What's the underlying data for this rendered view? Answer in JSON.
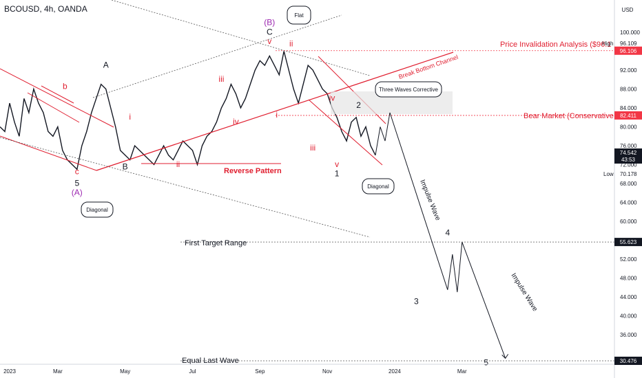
{
  "symbol": "BCOUSD, 4h, OANDA",
  "currency": "USD",
  "chart_data": {
    "type": "line",
    "ylim": [
      28,
      108
    ],
    "y_ticks": [
      {
        "v": 100,
        "label": "100.000"
      },
      {
        "v": 92,
        "label": "92.000"
      },
      {
        "v": 88,
        "label": "88.000"
      },
      {
        "v": 84,
        "label": "84.000"
      },
      {
        "v": 80,
        "label": "80.000"
      },
      {
        "v": 76,
        "label": "76.000"
      },
      {
        "v": 72,
        "label": "72.000"
      },
      {
        "v": 68,
        "label": "68.000"
      },
      {
        "v": 64,
        "label": "64.000"
      },
      {
        "v": 60,
        "label": "60.000"
      },
      {
        "v": 52,
        "label": "52.000"
      },
      {
        "v": 48,
        "label": "48.000"
      },
      {
        "v": 44,
        "label": "44.000"
      },
      {
        "v": 40,
        "label": "40.000"
      },
      {
        "v": 36,
        "label": "36.000"
      }
    ],
    "x_ticks": [
      {
        "x": 0,
        "label": "2023"
      },
      {
        "x": 12,
        "label": "Mar"
      },
      {
        "x": 26,
        "label": "May"
      },
      {
        "x": 40,
        "label": "Jul"
      },
      {
        "x": 54,
        "label": "Sep"
      },
      {
        "x": 68,
        "label": "Nov"
      },
      {
        "x": 82,
        "label": "2024"
      },
      {
        "x": 96,
        "label": "Mar"
      }
    ],
    "high_label": "High",
    "high_value": "96.109",
    "low_label": "Low",
    "low_value": "70.178",
    "price_badges": [
      {
        "v": 96.106,
        "label": "96.106",
        "color": "#f23645"
      },
      {
        "v": 82.411,
        "label": "82.411",
        "color": "#f23645"
      },
      {
        "v": 74.542,
        "label": "74.542",
        "sub": "43:53",
        "color": "#131722"
      },
      {
        "v": 55.623,
        "label": "55.623",
        "color": "#131722"
      },
      {
        "v": 30.476,
        "label": "30.476",
        "color": "#131722"
      }
    ],
    "price_path": [
      [
        0,
        80
      ],
      [
        1,
        79
      ],
      [
        2,
        85
      ],
      [
        3,
        81
      ],
      [
        4,
        78
      ],
      [
        5,
        86
      ],
      [
        6,
        83
      ],
      [
        7,
        88
      ],
      [
        8,
        85
      ],
      [
        9,
        83
      ],
      [
        10,
        79
      ],
      [
        11,
        78
      ],
      [
        12,
        80
      ],
      [
        13,
        75
      ],
      [
        14,
        73
      ],
      [
        15,
        72
      ],
      [
        16,
        71
      ],
      [
        17,
        76
      ],
      [
        18,
        79
      ],
      [
        19,
        83
      ],
      [
        20,
        86
      ],
      [
        21,
        89
      ],
      [
        22,
        88
      ],
      [
        23,
        84
      ],
      [
        24,
        80
      ],
      [
        25,
        75
      ],
      [
        26,
        74
      ],
      [
        27,
        73
      ],
      [
        28,
        76
      ],
      [
        29,
        75
      ],
      [
        30,
        74
      ],
      [
        31,
        73
      ],
      [
        32,
        72
      ],
      [
        33,
        74
      ],
      [
        34,
        76
      ],
      [
        35,
        74
      ],
      [
        36,
        73
      ],
      [
        37,
        75
      ],
      [
        38,
        77
      ],
      [
        39,
        76
      ],
      [
        40,
        75
      ],
      [
        41,
        72
      ],
      [
        42,
        76
      ],
      [
        43,
        78
      ],
      [
        44,
        79
      ],
      [
        45,
        81
      ],
      [
        46,
        84
      ],
      [
        47,
        86
      ],
      [
        48,
        89
      ],
      [
        49,
        87
      ],
      [
        50,
        84
      ],
      [
        51,
        86
      ],
      [
        52,
        89
      ],
      [
        53,
        92
      ],
      [
        54,
        94
      ],
      [
        55,
        93
      ],
      [
        56,
        95
      ],
      [
        57,
        93
      ],
      [
        58,
        91
      ],
      [
        59,
        96
      ],
      [
        60,
        92
      ],
      [
        61,
        88
      ],
      [
        62,
        85
      ],
      [
        63,
        89
      ],
      [
        64,
        93
      ],
      [
        65,
        92
      ],
      [
        66,
        90
      ],
      [
        67,
        88
      ],
      [
        68,
        87
      ],
      [
        69,
        84
      ],
      [
        70,
        82
      ],
      [
        71,
        79
      ],
      [
        72,
        77
      ],
      [
        73,
        81
      ],
      [
        74,
        82
      ],
      [
        75,
        78
      ],
      [
        76,
        80
      ],
      [
        77,
        76
      ],
      [
        78,
        74
      ]
    ],
    "projection": [
      [
        78,
        74
      ],
      [
        79,
        80
      ],
      [
        80,
        77
      ],
      [
        81,
        83
      ],
      [
        93,
        45.5
      ],
      [
        94,
        53
      ],
      [
        95,
        45
      ],
      [
        96,
        55.6
      ],
      [
        105,
        31
      ]
    ],
    "annotations": {
      "price_invalidation": "Price Invalidation Analysis ($96.1",
      "break_bottom": "Break Bottom Channel",
      "three_waves": "Three Waves Corrective",
      "bear_market": "Bear Market (Conservative IDEA)",
      "reverse_pattern": "Reverse Pattern",
      "first_target": "First Target Range",
      "equal_last_wave": "Equal Last Wave",
      "flat": "Flat",
      "diagonal": "Diagonal",
      "impulse_wave": "Impulse Wave"
    },
    "wave_labels": [
      {
        "t": "b",
        "x": 13.5,
        "v": 88,
        "c": "#e01e2f"
      },
      {
        "t": "A",
        "x": 22,
        "v": 92.5,
        "c": "#131722"
      },
      {
        "t": "c",
        "x": 16,
        "v": 70,
        "c": "#e01e2f"
      },
      {
        "t": "5",
        "x": 16,
        "v": 67.5,
        "c": "#131722"
      },
      {
        "t": "(A)",
        "x": 16,
        "v": 65.5,
        "c": "#9c27b0"
      },
      {
        "t": "B",
        "x": 26,
        "v": 71,
        "c": "#131722"
      },
      {
        "t": "i",
        "x": 27,
        "v": 81.5,
        "c": "#e01e2f"
      },
      {
        "t": "ii",
        "x": 37,
        "v": 71.5,
        "c": "#e01e2f"
      },
      {
        "t": "iii",
        "x": 46,
        "v": 89.5,
        "c": "#e01e2f"
      },
      {
        "t": "iv",
        "x": 49,
        "v": 80.5,
        "c": "#e01e2f"
      },
      {
        "t": "v",
        "x": 56,
        "v": 97.5,
        "c": "#e01e2f"
      },
      {
        "t": "C",
        "x": 56,
        "v": 99.5,
        "c": "#131722"
      },
      {
        "t": "(B)",
        "x": 56,
        "v": 101.5,
        "c": "#9c27b0"
      },
      {
        "t": "ii",
        "x": 60.5,
        "v": 97,
        "c": "#e01e2f"
      },
      {
        "t": "i",
        "x": 57.5,
        "v": 82,
        "c": "#e01e2f"
      },
      {
        "t": "iii",
        "x": 65,
        "v": 75,
        "c": "#e01e2f"
      },
      {
        "t": "iv",
        "x": 69,
        "v": 85.5,
        "c": "#e01e2f"
      },
      {
        "t": "v",
        "x": 70,
        "v": 71.5,
        "c": "#e01e2f"
      },
      {
        "t": "1",
        "x": 70,
        "v": 69.5,
        "c": "#131722"
      },
      {
        "t": "2",
        "x": 74.5,
        "v": 84,
        "c": "#131722"
      },
      {
        "t": "3",
        "x": 86.5,
        "v": 42.5,
        "c": "#131722"
      },
      {
        "t": "4",
        "x": 93,
        "v": 57,
        "c": "#131722"
      },
      {
        "t": "5",
        "x": 101,
        "v": 29.5,
        "c": "#131722"
      }
    ]
  }
}
